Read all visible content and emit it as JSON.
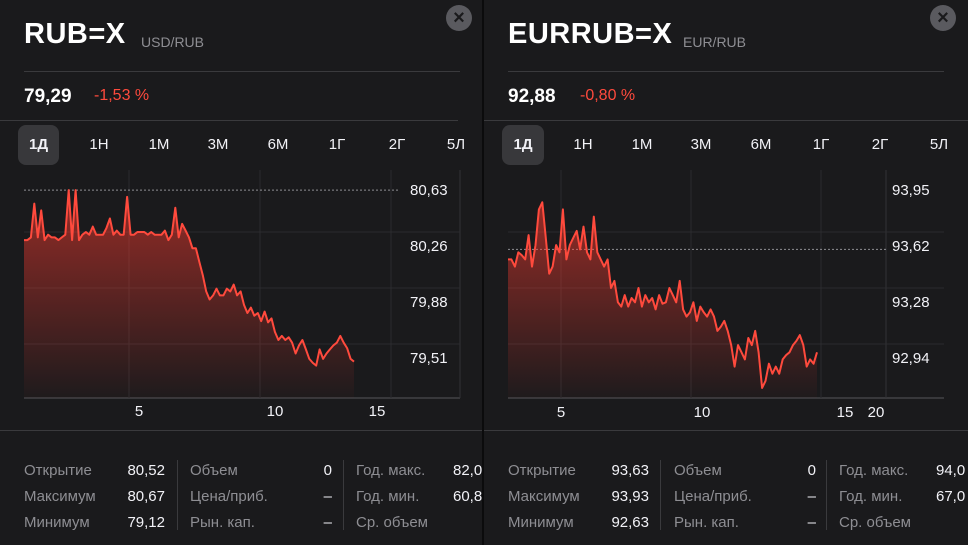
{
  "tabs": [
    "1Д",
    "1Н",
    "1М",
    "3М",
    "6М",
    "1Г",
    "2Г",
    "5Л"
  ],
  "colors": {
    "accent": "#ff4a3d",
    "background": "#1a1a1c",
    "muted": "#8e8e93"
  },
  "panels": [
    {
      "symbol": "RUB=X",
      "subtitle": "USD/RUB",
      "price": "79,29",
      "change": "-1,53 %",
      "active_tab": "1Д",
      "close_icon": "close-icon",
      "chart_data": {
        "type": "line",
        "x_tick_labels": [
          "5",
          "10",
          "15"
        ],
        "y_tick_labels": [
          "80,63",
          "80,26",
          "79,88",
          "79,51"
        ],
        "x_range": [
          1,
          17.2
        ],
        "y_range": [
          79.09,
          80.72
        ],
        "prev_close": 80.63,
        "values": [
          80.26,
          80.26,
          80.28,
          80.53,
          80.28,
          80.48,
          80.26,
          80.3,
          80.28,
          80.28,
          80.26,
          80.28,
          80.3,
          80.63,
          80.26,
          80.63,
          80.26,
          80.3,
          80.32,
          80.3,
          80.36,
          80.3,
          80.3,
          80.3,
          80.35,
          80.42,
          80.3,
          80.33,
          80.3,
          80.3,
          80.58,
          80.3,
          80.3,
          80.32,
          80.32,
          80.32,
          80.3,
          80.32,
          80.3,
          80.3,
          80.3,
          80.33,
          80.26,
          80.3,
          80.5,
          80.28,
          80.38,
          80.33,
          80.28,
          80.2,
          80.2,
          80.1,
          80.0,
          79.88,
          79.82,
          79.85,
          79.9,
          79.85,
          79.85,
          79.9,
          79.88,
          79.93,
          79.85,
          79.88,
          79.78,
          79.72,
          79.76,
          79.7,
          79.72,
          79.66,
          79.73,
          79.65,
          79.68,
          79.58,
          79.52,
          79.55,
          79.52,
          79.54,
          79.5,
          79.42,
          79.48,
          79.52,
          79.45,
          79.38,
          79.35,
          79.33,
          79.45,
          79.38,
          79.42,
          79.45,
          79.48,
          79.5,
          79.55,
          79.5,
          79.46,
          79.38,
          79.36
        ],
        "ylabel": "",
        "xlabel": ""
      },
      "stats": [
        [
          [
            "Открытие",
            "80,52"
          ],
          [
            "Максимум",
            "80,67"
          ],
          [
            "Минимум",
            "79,12"
          ]
        ],
        [
          [
            "Объем",
            "0"
          ],
          [
            "Цена/приб.",
            "–"
          ],
          [
            "Рын. кап.",
            "–"
          ]
        ],
        [
          [
            "Год. макс.",
            "82,0"
          ],
          [
            "Год. мин.",
            "60,8"
          ],
          [
            "Ср. объем",
            ""
          ]
        ]
      ]
    },
    {
      "symbol": "EURRUB=X",
      "subtitle": "EUR/RUB",
      "price": "92,88",
      "change": "-0,80 %",
      "active_tab": "1Д",
      "close_icon": "close-icon",
      "chart_data": {
        "type": "line",
        "x_tick_labels": [
          "5",
          "10",
          "15",
          "20"
        ],
        "y_tick_labels": [
          "93,95",
          "93,62",
          "93,28",
          "92,94"
        ],
        "x_range": [
          1.5,
          23.6
        ],
        "y_range": [
          92.58,
          94.12
        ],
        "prev_close": 93.62,
        "values": [
          93.55,
          93.55,
          93.5,
          93.6,
          93.58,
          93.55,
          93.72,
          93.5,
          93.65,
          93.9,
          93.95,
          93.7,
          93.45,
          93.5,
          93.65,
          93.6,
          93.9,
          93.55,
          93.65,
          93.7,
          93.75,
          93.62,
          93.78,
          93.6,
          93.55,
          93.85,
          93.6,
          93.55,
          93.5,
          93.55,
          93.35,
          93.4,
          93.25,
          93.22,
          93.3,
          93.22,
          93.28,
          93.25,
          93.35,
          93.22,
          93.3,
          93.25,
          93.28,
          93.2,
          93.3,
          93.24,
          93.25,
          93.35,
          93.3,
          93.25,
          93.4,
          93.2,
          93.15,
          93.18,
          93.25,
          93.12,
          93.22,
          93.18,
          93.15,
          93.2,
          93.15,
          93.05,
          93.08,
          93.12,
          93.05,
          92.95,
          92.8,
          92.95,
          92.9,
          92.85,
          93.0,
          92.95,
          93.05,
          92.9,
          92.65,
          92.7,
          92.82,
          92.75,
          92.8,
          92.75,
          92.85,
          92.88,
          92.9,
          92.95,
          92.98,
          93.02,
          92.95,
          92.8,
          92.85,
          92.82,
          92.9
        ]
      },
      "stats": [
        [
          [
            "Открытие",
            "93,63"
          ],
          [
            "Максимум",
            "93,93"
          ],
          [
            "Минимум",
            "92,63"
          ]
        ],
        [
          [
            "Объем",
            "0"
          ],
          [
            "Цена/приб.",
            "–"
          ],
          [
            "Рын. кап.",
            "–"
          ]
        ],
        [
          [
            "Год. макс.",
            "94,0"
          ],
          [
            "Год. мин.",
            "67,0"
          ],
          [
            "Ср. объем",
            ""
          ]
        ]
      ]
    }
  ]
}
